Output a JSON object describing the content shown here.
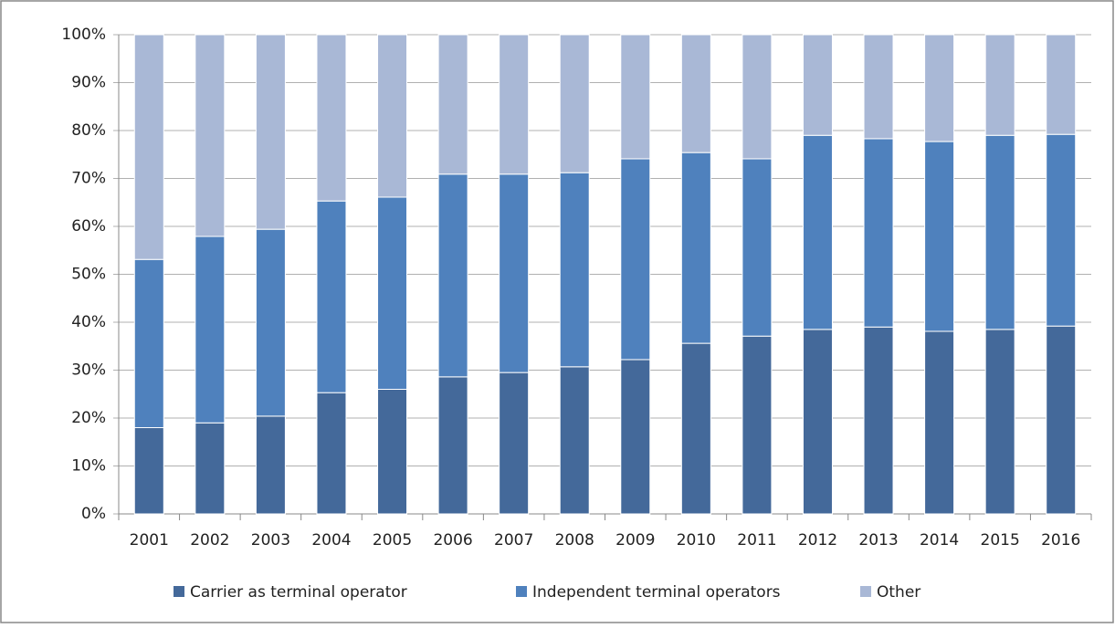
{
  "chart_data": {
    "type": "stacked_bar",
    "categories": [
      "2001",
      "2002",
      "2003",
      "2004",
      "2005",
      "2006",
      "2007",
      "2008",
      "2009",
      "2010",
      "2011",
      "2012",
      "2013",
      "2014",
      "2015",
      "2016"
    ],
    "series": [
      {
        "name": "Carrier as terminal operator",
        "color": "#44699a",
        "values": [
          18,
          19,
          20.4,
          25.3,
          26,
          28.6,
          29.5,
          30.7,
          32.2,
          35.6,
          37.1,
          38.5,
          39,
          38.1,
          38.5,
          39.2
        ]
      },
      {
        "name": "Independent terminal operators",
        "color": "#4f81bd",
        "values": [
          35.1,
          38.9,
          39,
          40,
          40.1,
          42.3,
          41.4,
          40.5,
          41.9,
          39.8,
          37,
          40.5,
          39.3,
          39.6,
          40.5,
          40
        ]
      },
      {
        "name": "Other",
        "color": "#a9b8d6",
        "values": [
          46.9,
          42.1,
          40.6,
          34.7,
          33.9,
          29.1,
          29.1,
          28.8,
          25.9,
          24.6,
          25.9,
          21,
          21.7,
          22.3,
          21,
          20.8
        ]
      }
    ],
    "ylim": [
      0,
      100
    ],
    "yticks": [
      {
        "value": 0,
        "label": "0%"
      },
      {
        "value": 10,
        "label": "10%"
      },
      {
        "value": 20,
        "label": "20%"
      },
      {
        "value": 30,
        "label": "30%"
      },
      {
        "value": 40,
        "label": "40%"
      },
      {
        "value": 50,
        "label": "50%"
      },
      {
        "value": 60,
        "label": "60%"
      },
      {
        "value": 70,
        "label": "70%"
      },
      {
        "value": 80,
        "label": "80%"
      },
      {
        "value": 90,
        "label": "90%"
      },
      {
        "value": 100,
        "label": "100%"
      }
    ],
    "grid": true,
    "legend": "bottom"
  }
}
